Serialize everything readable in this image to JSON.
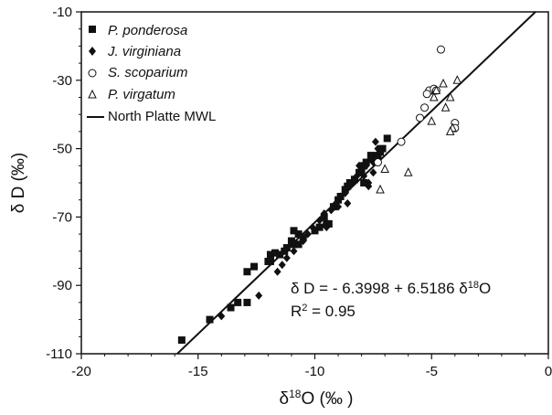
{
  "chart_data": {
    "type": "scatter",
    "title": "",
    "xlabel": {
      "prefix": "δ",
      "sup": "18",
      "main": "O (‰ )"
    },
    "ylabel": "δ D (‰)",
    "xlim": [
      -20,
      0
    ],
    "ylim": [
      -110,
      -10
    ],
    "x_ticks": [
      -20,
      -15,
      -10,
      -5,
      0
    ],
    "x_tick_labels": [
      "-20",
      "-15",
      "-10",
      "-5",
      "0"
    ],
    "y_ticks": [
      -110,
      -90,
      -70,
      -50,
      -30,
      -10
    ],
    "y_tick_labels": [
      "-110",
      "-90",
      "-70",
      "-50",
      "-30",
      "-10"
    ],
    "legend_position": "top-left",
    "series": [
      {
        "name": "P. ponderosa",
        "marker": "square",
        "points": [
          [
            -15.7,
            -106
          ],
          [
            -14.5,
            -100
          ],
          [
            -13.6,
            -96.5
          ],
          [
            -13.3,
            -95
          ],
          [
            -12.9,
            -95
          ],
          [
            -12.9,
            -86
          ],
          [
            -12.6,
            -84.5
          ],
          [
            -12.0,
            -83
          ],
          [
            -11.9,
            -83
          ],
          [
            -11.9,
            -81
          ],
          [
            -11.7,
            -80.5
          ],
          [
            -11.5,
            -81
          ],
          [
            -11.3,
            -80
          ],
          [
            -11.2,
            -79
          ],
          [
            -11.0,
            -77
          ],
          [
            -10.9,
            -78
          ],
          [
            -10.9,
            -74
          ],
          [
            -10.7,
            -75
          ],
          [
            -10.7,
            -78
          ],
          [
            -10.5,
            -76
          ],
          [
            -10.0,
            -74
          ],
          [
            -9.8,
            -73
          ],
          [
            -9.6,
            -70
          ],
          [
            -9.5,
            -72
          ],
          [
            -9.4,
            -72
          ],
          [
            -9.2,
            -67
          ],
          [
            -9.0,
            -65
          ],
          [
            -8.9,
            -64
          ],
          [
            -8.7,
            -62
          ],
          [
            -8.6,
            -61
          ],
          [
            -8.5,
            -60
          ],
          [
            -8.3,
            -59
          ],
          [
            -8.1,
            -57
          ],
          [
            -8.0,
            -56
          ],
          [
            -7.9,
            -55
          ],
          [
            -7.8,
            -54
          ],
          [
            -7.6,
            -52
          ],
          [
            -7.4,
            -53
          ],
          [
            -7.3,
            -52
          ],
          [
            -7.1,
            -50
          ],
          [
            -6.9,
            -47
          ],
          [
            -7.9,
            -60
          ],
          [
            -7.2,
            -51
          ]
        ]
      },
      {
        "name": "J. virginiana",
        "marker": "diamond",
        "points": [
          [
            -14.0,
            -99
          ],
          [
            -12.4,
            -93
          ],
          [
            -11.6,
            -86
          ],
          [
            -11.4,
            -84
          ],
          [
            -11.2,
            -82
          ],
          [
            -10.9,
            -80
          ],
          [
            -10.5,
            -77
          ],
          [
            -10.3,
            -75
          ],
          [
            -10.1,
            -73
          ],
          [
            -9.8,
            -71
          ],
          [
            -9.6,
            -69
          ],
          [
            -9.5,
            -73
          ],
          [
            -9.3,
            -68
          ],
          [
            -9.1,
            -66
          ],
          [
            -9.0,
            -67
          ],
          [
            -8.9,
            -64
          ],
          [
            -8.7,
            -63
          ],
          [
            -8.6,
            -66
          ],
          [
            -8.4,
            -60
          ],
          [
            -8.3,
            -59
          ],
          [
            -8.2,
            -58
          ],
          [
            -8.1,
            -55
          ],
          [
            -8.0,
            -56
          ],
          [
            -7.9,
            -58
          ],
          [
            -7.8,
            -55
          ],
          [
            -7.7,
            -60
          ],
          [
            -7.6,
            -53
          ],
          [
            -7.5,
            -54
          ],
          [
            -7.4,
            -48
          ],
          [
            -7.3,
            -50
          ],
          [
            -7.2,
            -51
          ],
          [
            -7.7,
            -61
          ],
          [
            -7.5,
            -57
          ]
        ]
      },
      {
        "name": "S. scoparium",
        "marker": "circle",
        "points": [
          [
            -4.6,
            -21
          ],
          [
            -5.0,
            -33
          ],
          [
            -5.1,
            -33
          ],
          [
            -4.9,
            -32.5
          ],
          [
            -4.8,
            -33
          ],
          [
            -5.2,
            -34
          ],
          [
            -5.3,
            -38
          ],
          [
            -5.5,
            -41
          ],
          [
            -4.0,
            -42.5
          ],
          [
            -4.0,
            -44
          ],
          [
            -6.3,
            -48
          ],
          [
            -7.3,
            -54
          ]
        ]
      },
      {
        "name": "P. virgatum",
        "marker": "triangle",
        "points": [
          [
            -3.9,
            -30
          ],
          [
            -4.5,
            -31
          ],
          [
            -4.8,
            -33
          ],
          [
            -4.9,
            -35
          ],
          [
            -4.2,
            -35
          ],
          [
            -4.4,
            -38
          ],
          [
            -5.0,
            -42
          ],
          [
            -4.1,
            -44
          ],
          [
            -4.2,
            -45
          ],
          [
            -7.0,
            -56
          ],
          [
            -6.0,
            -57
          ],
          [
            -7.2,
            -62
          ]
        ]
      },
      {
        "name": "North Platte MWL",
        "marker": "line",
        "line": {
          "intercept": -6.3998,
          "slope": 6.5186
        }
      }
    ],
    "annotations": {
      "equation": {
        "prefix": "δ D = - 6.3998 + 6.5186 δ",
        "sup": "18",
        "suffix": "O"
      },
      "r2": {
        "prefix": "R",
        "sup": "2",
        "suffix": " = 0.95"
      }
    }
  }
}
